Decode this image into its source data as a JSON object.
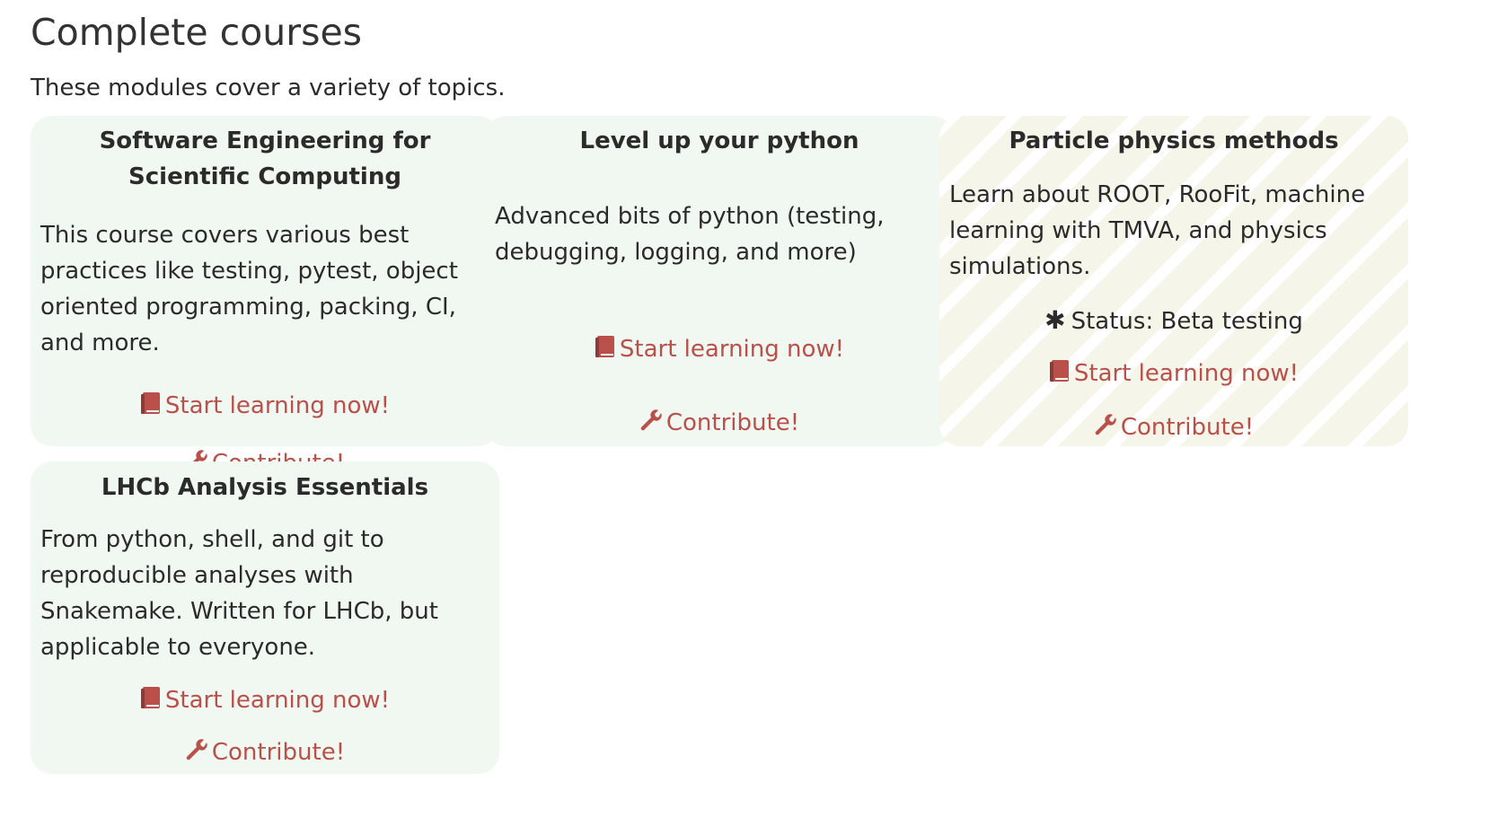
{
  "page": {
    "title": "Complete courses",
    "intro": "These modules cover a variety of topics."
  },
  "colors": {
    "card_background": "#f1f7f1",
    "beta_card_background": "#f6f5ea",
    "link": "#b9504a",
    "text": "#2b2b2b"
  },
  "courses": [
    {
      "title": "Software Engineering for Scientific Computing",
      "description": "This course covers various best practices like testing, pytest, object oriented programming, packing, CI, and more.",
      "start_label": "Start learning now!",
      "contribute_label": "Contribute!",
      "start_icon": "book-icon",
      "contribute_icon": "wrench-icon"
    },
    {
      "title": "Level up your python",
      "description": "Advanced bits of python (testing, debugging, logging, and more)",
      "start_label": "Start learning now!",
      "contribute_label": "Contribute!",
      "start_icon": "book-icon",
      "contribute_icon": "wrench-icon"
    },
    {
      "title": "Particle physics methods",
      "description": "Learn about ROOT, RooFit, machine learning with TMVA, and physics simulations.",
      "status": "Status: Beta testing",
      "status_icon": "asterisk-icon",
      "start_label": "Start learning now!",
      "contribute_label": "Contribute!",
      "start_icon": "book-icon",
      "contribute_icon": "wrench-icon"
    },
    {
      "title": "LHCb Analysis Essentials",
      "description": "From python, shell, and git to reproducible analyses with Snakemake. Written for LHCb, but applicable to everyone.",
      "start_label": "Start learning now!",
      "contribute_label": "Contribute!",
      "start_icon": "book-icon",
      "contribute_icon": "wrench-icon"
    }
  ]
}
